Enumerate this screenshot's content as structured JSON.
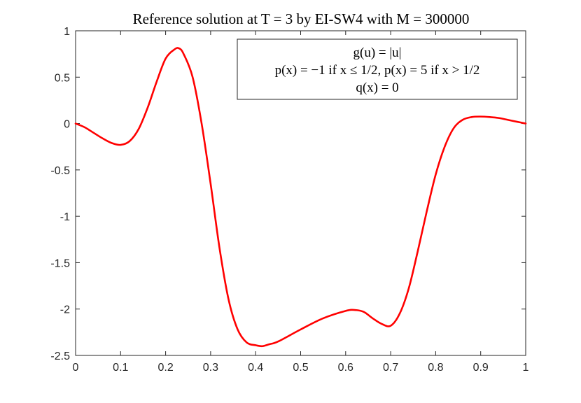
{
  "chart_data": {
    "type": "line",
    "title": "Reference solution at T = 3 by EI-SW4 with M = 300000",
    "xlabel": "",
    "ylabel": "",
    "xlim": [
      0,
      1
    ],
    "ylim": [
      -2.5,
      1
    ],
    "x_ticks": [
      "0",
      "0.1",
      "0.2",
      "0.3",
      "0.4",
      "0.5",
      "0.6",
      "0.7",
      "0.8",
      "0.9",
      "1"
    ],
    "y_ticks": [
      "1",
      "0.5",
      "0",
      "-0.5",
      "-1",
      "-1.5",
      "-2",
      "-2.5"
    ],
    "grid": false,
    "legend_position": "top-right",
    "legend_lines": [
      "g(u) = |u|",
      "p(x) = −1 if x ≤ 1/2, p(x) = 5 if x > 1/2",
      "q(x) = 0"
    ],
    "series": [
      {
        "color": "#ff0000",
        "x": [
          0,
          0.02,
          0.04,
          0.06,
          0.08,
          0.1,
          0.12,
          0.14,
          0.16,
          0.18,
          0.2,
          0.22,
          0.23,
          0.24,
          0.26,
          0.28,
          0.3,
          0.32,
          0.34,
          0.36,
          0.38,
          0.4,
          0.415,
          0.43,
          0.45,
          0.5,
          0.55,
          0.6,
          0.62,
          0.64,
          0.66,
          0.68,
          0.7,
          0.72,
          0.74,
          0.76,
          0.78,
          0.8,
          0.82,
          0.84,
          0.86,
          0.88,
          0.9,
          0.92,
          0.94,
          0.96,
          0.98,
          1
        ],
        "y": [
          0,
          -0.04,
          -0.1,
          -0.16,
          -0.21,
          -0.23,
          -0.19,
          -0.06,
          0.17,
          0.45,
          0.7,
          0.8,
          0.81,
          0.75,
          0.5,
          0.0,
          -0.65,
          -1.35,
          -1.9,
          -2.22,
          -2.36,
          -2.39,
          -2.4,
          -2.38,
          -2.35,
          -2.22,
          -2.1,
          -2.02,
          -2.01,
          -2.03,
          -2.1,
          -2.16,
          -2.18,
          -2.05,
          -1.78,
          -1.38,
          -0.95,
          -0.55,
          -0.25,
          -0.05,
          0.04,
          0.07,
          0.075,
          0.07,
          0.06,
          0.04,
          0.02,
          0
        ]
      }
    ]
  }
}
